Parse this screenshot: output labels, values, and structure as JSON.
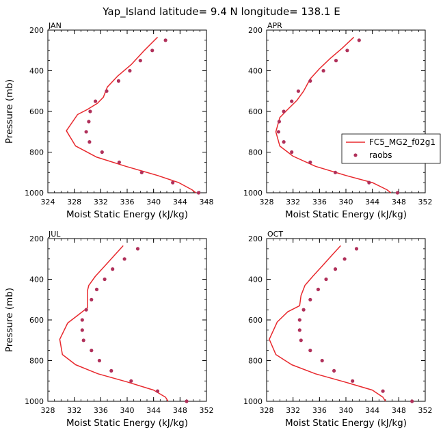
{
  "figure": {
    "title": "Yap_Island  latitude= 9.4 N longitude= 138.1 E"
  },
  "legend": {
    "model_label": "FC5_MG2_f02g1",
    "obs_label": "raobs"
  },
  "colors": {
    "model": "#e8282d",
    "obs": "#b0305a",
    "axis": "#000000"
  },
  "chart_data": [
    {
      "type": "line",
      "panel": "JAN",
      "xlabel": "Moist Static Energy (kJ/kg)",
      "ylabel": "Pressure (mb)",
      "xlim": [
        324,
        348
      ],
      "ylim": [
        1000,
        200
      ],
      "xticks": [
        324,
        328,
        332,
        336,
        340,
        344,
        348
      ],
      "yticks": [
        200,
        400,
        600,
        800,
        1000
      ],
      "series": [
        {
          "name": "FC5_MG2_f02g1",
          "x": [
            340.6,
            338.6,
            336.6,
            334.6,
            333.0,
            332.4,
            331.5,
            330.0,
            328.5,
            326.8,
            328.2,
            331.4,
            335.8,
            340.6,
            343.8,
            345.8,
            346.4
          ],
          "y": [
            235,
            300,
            370,
            425,
            480,
            530,
            560,
            590,
            615,
            695,
            770,
            825,
            870,
            915,
            950,
            985,
            1000
          ]
        },
        {
          "name": "raobs",
          "x": [
            341.8,
            339.8,
            338.0,
            336.4,
            334.7,
            332.9,
            331.2,
            330.4,
            330.2,
            329.8,
            330.3,
            332.2,
            334.8,
            338.2,
            342.9,
            346.8
          ],
          "y": [
            250,
            300,
            350,
            400,
            450,
            500,
            550,
            600,
            650,
            700,
            750,
            800,
            850,
            900,
            950,
            1000
          ]
        }
      ]
    },
    {
      "type": "line",
      "panel": "APR",
      "xlabel": "Moist Static Energy (kJ/kg)",
      "ylabel": "",
      "xlim": [
        328,
        352
      ],
      "ylim": [
        1000,
        200
      ],
      "xticks": [
        328,
        332,
        336,
        340,
        344,
        348,
        352
      ],
      "yticks": [
        200,
        400,
        600,
        800,
        1000
      ],
      "series": [
        {
          "name": "FC5_MG2_f02g1",
          "x": [
            341.2,
            339.4,
            337.6,
            336.0,
            334.6,
            333.6,
            332.6,
            331.2,
            330.0,
            329.4,
            330.0,
            332.0,
            335.4,
            340.0,
            344.0,
            346.2,
            346.8
          ],
          "y": [
            235,
            290,
            340,
            390,
            440,
            500,
            545,
            590,
            630,
            700,
            770,
            820,
            870,
            915,
            950,
            985,
            1000
          ]
        },
        {
          "name": "raobs",
          "x": [
            342.0,
            340.2,
            338.5,
            336.6,
            334.6,
            332.8,
            331.8,
            330.6,
            329.9,
            329.8,
            330.6,
            331.8,
            334.6,
            338.4,
            343.5,
            347.8
          ],
          "y": [
            250,
            300,
            350,
            400,
            450,
            500,
            550,
            600,
            650,
            700,
            750,
            800,
            850,
            900,
            950,
            1000
          ]
        }
      ]
    },
    {
      "type": "line",
      "panel": "JUL",
      "xlabel": "Moist Static Energy (kJ/kg)",
      "ylabel": "Pressure (mb)",
      "xlim": [
        328,
        352
      ],
      "ylim": [
        1000,
        200
      ],
      "xticks": [
        328,
        332,
        336,
        340,
        344,
        348,
        352
      ],
      "yticks": [
        200,
        400,
        600,
        800,
        1000
      ],
      "series": [
        {
          "name": "FC5_MG2_f02g1",
          "x": [
            339.4,
            338.0,
            336.6,
            335.2,
            334.2,
            334.0,
            334.0,
            332.6,
            331.0,
            329.8,
            330.2,
            332.2,
            335.6,
            340.0,
            344.0,
            345.8,
            346.2
          ],
          "y": [
            235,
            285,
            335,
            385,
            430,
            455,
            540,
            575,
            615,
            695,
            770,
            820,
            865,
            905,
            945,
            980,
            1000
          ]
        },
        {
          "name": "raobs",
          "x": [
            341.6,
            339.6,
            337.8,
            336.6,
            335.4,
            334.6,
            333.8,
            333.2,
            333.2,
            333.4,
            334.6,
            335.8,
            337.6,
            340.6,
            344.6,
            349.0
          ],
          "y": [
            250,
            300,
            350,
            400,
            450,
            500,
            550,
            600,
            650,
            700,
            750,
            800,
            850,
            900,
            950,
            1000
          ]
        }
      ]
    },
    {
      "type": "line",
      "panel": "OCT",
      "xlabel": "Moist Static Energy (kJ/kg)",
      "ylabel": "",
      "xlim": [
        328,
        352
      ],
      "ylim": [
        1000,
        200
      ],
      "xticks": [
        328,
        332,
        336,
        340,
        344,
        348,
        352
      ],
      "yticks": [
        200,
        400,
        600,
        800,
        1000
      ],
      "series": [
        {
          "name": "FC5_MG2_f02g1",
          "x": [
            339.2,
            337.8,
            336.4,
            335.0,
            333.8,
            333.2,
            333.0,
            331.2,
            329.6,
            328.4,
            329.4,
            331.8,
            335.4,
            339.8,
            344.0,
            345.6,
            346.0
          ],
          "y": [
            235,
            285,
            335,
            385,
            430,
            480,
            530,
            560,
            610,
            695,
            770,
            820,
            865,
            905,
            945,
            980,
            1000
          ]
        },
        {
          "name": "raobs",
          "x": [
            341.6,
            339.8,
            338.4,
            337.0,
            335.8,
            334.6,
            333.6,
            333.0,
            333.0,
            333.2,
            334.6,
            336.4,
            338.2,
            341.0,
            345.6,
            350.0
          ],
          "y": [
            250,
            300,
            350,
            400,
            450,
            500,
            550,
            600,
            650,
            700,
            750,
            800,
            850,
            900,
            950,
            1000
          ]
        }
      ]
    }
  ]
}
